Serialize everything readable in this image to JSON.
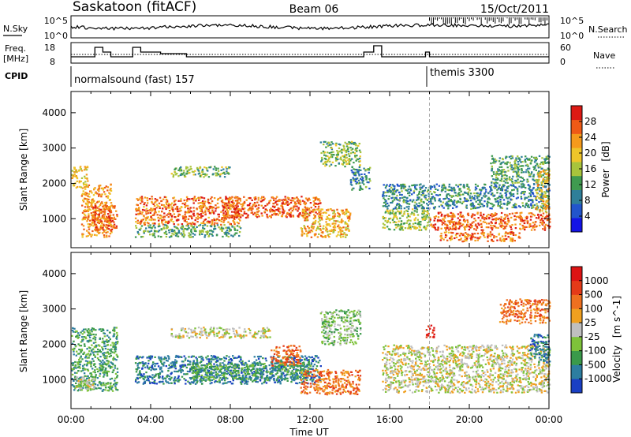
{
  "header": {
    "station": "Saskatoon (fitACF)",
    "beam": "Beam 06",
    "date": "15/Oct/2011"
  },
  "noise_panel": {
    "left_label": "N.Sky",
    "right_label": "N.Search",
    "left_ticks": [
      "10^5",
      "10^0"
    ],
    "right_ticks": [
      "10^5",
      "10^0"
    ]
  },
  "freq_panel": {
    "left_label_line1": "Freq.",
    "left_label_line2": "[MHz]",
    "right_label": "Nave",
    "left_ticks": [
      "18",
      "8"
    ],
    "right_ticks": [
      "60",
      "0"
    ]
  },
  "cpid_panel": {
    "label": "CPID",
    "programs": [
      {
        "name": "normalsound (fast) 157",
        "start_hour": 0
      },
      {
        "name": "themis 3300",
        "start_hour": 18
      }
    ]
  },
  "chart_data": [
    {
      "type": "heatmap",
      "title": "Power",
      "quantity": "Power",
      "unit": "[dB]",
      "ylabel": "Slant Range [km]",
      "xlabel": "",
      "ylim": [
        180,
        4600
      ],
      "yticks": [
        1000,
        2000,
        3000,
        4000
      ],
      "xlim": [
        0,
        24
      ],
      "colorbar_ticks": [
        4,
        8,
        12,
        16,
        20,
        24,
        28
      ],
      "colorbar_range": [
        0,
        32
      ],
      "colorbar_colors": [
        "#1414e6",
        "#2255cc",
        "#2f7f99",
        "#3f9a50",
        "#a8c43c",
        "#eec52a",
        "#f59a1c",
        "#ee5a16",
        "#dd1a14"
      ],
      "regions": [
        {
          "x0": 0.0,
          "x1": 0.8,
          "y0": 1900,
          "y1": 2500,
          "level": 20
        },
        {
          "x0": 0.5,
          "x1": 2.0,
          "y0": 500,
          "y1": 2000,
          "level": 24
        },
        {
          "x0": 1.0,
          "x1": 2.3,
          "y0": 700,
          "y1": 1400,
          "level": 28
        },
        {
          "x0": 3.2,
          "x1": 8.5,
          "y0": 850,
          "y1": 1650,
          "level": 27
        },
        {
          "x0": 3.2,
          "x1": 8.5,
          "y0": 500,
          "y1": 850,
          "level": 12
        },
        {
          "x0": 5.0,
          "x1": 8.0,
          "y0": 2200,
          "y1": 2500,
          "level": 14
        },
        {
          "x0": 7.5,
          "x1": 12.5,
          "y0": 1050,
          "y1": 1650,
          "level": 28
        },
        {
          "x0": 11.5,
          "x1": 14.0,
          "y0": 500,
          "y1": 1300,
          "level": 22
        },
        {
          "x0": 12.5,
          "x1": 14.5,
          "y0": 2500,
          "y1": 3200,
          "level": 15
        },
        {
          "x0": 14.0,
          "x1": 15.0,
          "y0": 1800,
          "y1": 2500,
          "level": 9
        },
        {
          "x0": 15.6,
          "x1": 18.0,
          "y0": 700,
          "y1": 1300,
          "level": 16
        },
        {
          "x0": 15.6,
          "x1": 24.0,
          "y0": 1300,
          "y1": 2000,
          "level": 9
        },
        {
          "x0": 18.0,
          "x1": 24.0,
          "y0": 700,
          "y1": 1200,
          "level": 28
        },
        {
          "x0": 18.5,
          "x1": 22.5,
          "y0": 380,
          "y1": 650,
          "level": 27
        },
        {
          "x0": 21.0,
          "x1": 24.0,
          "y0": 2000,
          "y1": 2800,
          "level": 12
        },
        {
          "x0": 23.3,
          "x1": 24.0,
          "y0": 1200,
          "y1": 2400,
          "level": 21
        }
      ]
    },
    {
      "type": "heatmap",
      "title": "Velocity",
      "quantity": "Velocity",
      "unit": "[m s^-1]",
      "ylabel": "Slant Range [km]",
      "xlabel": "Time UT",
      "ylim": [
        180,
        4600
      ],
      "yticks": [
        1000,
        2000,
        3000,
        4000
      ],
      "xlim": [
        0,
        24
      ],
      "xticks": [
        "00:00",
        "04:00",
        "08:00",
        "12:00",
        "16:00",
        "20:00",
        "00:00"
      ],
      "colorbar_ticks": [
        1000,
        500,
        100,
        25,
        -25,
        -100,
        -500,
        -1000
      ],
      "colorbar_colors": [
        "#1a3fc4",
        "#2d7ea0",
        "#3a9a4a",
        "#7ec23a",
        "#bfbfbf",
        "#f0a020",
        "#ee7020",
        "#e43a18",
        "#dd1414"
      ],
      "regions": [
        {
          "x0": 0.0,
          "x1": 2.3,
          "y0": 700,
          "y1": 2500,
          "level": 2
        },
        {
          "x0": 0.2,
          "x1": 1.2,
          "y0": 750,
          "y1": 1100,
          "level": 4
        },
        {
          "x0": 3.2,
          "x1": 12.5,
          "y0": 900,
          "y1": 1700,
          "level": 1
        },
        {
          "x0": 6.0,
          "x1": 12.0,
          "y0": 1000,
          "y1": 1500,
          "level": 2
        },
        {
          "x0": 5.0,
          "x1": 10.0,
          "y0": 2200,
          "y1": 2500,
          "level": 4
        },
        {
          "x0": 10.0,
          "x1": 11.5,
          "y0": 1400,
          "y1": 2000,
          "level": 6
        },
        {
          "x0": 11.5,
          "x1": 14.5,
          "y0": 600,
          "y1": 1300,
          "level": 6
        },
        {
          "x0": 12.5,
          "x1": 14.5,
          "y0": 2000,
          "y1": 3000,
          "level": 3
        },
        {
          "x0": 15.6,
          "x1": 24.0,
          "y0": 650,
          "y1": 2000,
          "level": 4
        },
        {
          "x0": 17.8,
          "x1": 18.2,
          "y0": 2200,
          "y1": 2600,
          "level": 8
        },
        {
          "x0": 23.0,
          "x1": 24.0,
          "y0": 1500,
          "y1": 2300,
          "level": 1
        },
        {
          "x0": 21.5,
          "x1": 24.0,
          "y0": 2600,
          "y1": 3300,
          "level": 6
        }
      ]
    }
  ]
}
